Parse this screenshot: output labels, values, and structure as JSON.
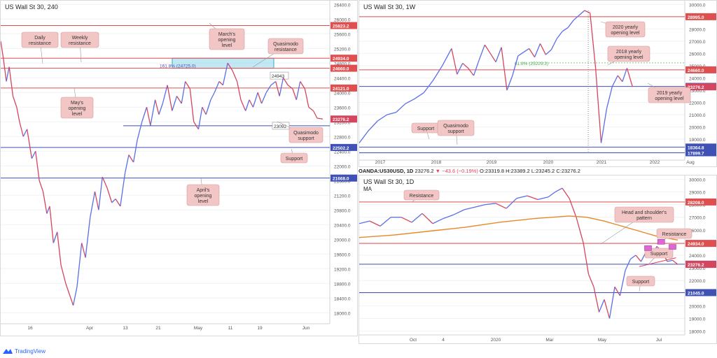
{
  "footer": {
    "brand": "TradingView"
  },
  "info_bar": {
    "symbol": "OANDA:US30USD, 1D",
    "last": "23276.2",
    "change": "−43.6 (−0.19%)",
    "open": "O:23319.8",
    "high": "H:23389.2",
    "low": "L:23245.2",
    "close": "C:23276.2"
  },
  "colors": {
    "up": "#5b6de8",
    "down": "#d6455e",
    "red_level": "#e04f4f",
    "blue_level": "#3f51b5",
    "callout_bg": "#f3c6c6",
    "ma": "#e6882a",
    "zone": "#8fd6ea",
    "pattern": "#e066d6"
  },
  "chart_data": [
    {
      "id": "h4",
      "type": "line",
      "title": "US Wall St 30, 240",
      "x_ticks": [
        "16",
        "Apr",
        "13",
        "21",
        "May",
        "11",
        "19",
        "Jun"
      ],
      "y_ticks": [
        "26400.0",
        "26000.0",
        "25600.0",
        "25200.0",
        "24800.0",
        "24400.0",
        "24000.0",
        "23600.0",
        "23200.0",
        "22800.0",
        "22400.0",
        "22000.0",
        "21600.0",
        "21200.0",
        "20800.0",
        "20400.0",
        "20000.0",
        "19600.0",
        "19200.0",
        "18800.0",
        "18400.0",
        "18000.0"
      ],
      "ylim": [
        17700,
        26500
      ],
      "series": [
        {
          "x": [
            0,
            3,
            6,
            9,
            13,
            17,
            20,
            24,
            28,
            33,
            37,
            41,
            45,
            49,
            52,
            56,
            60,
            64,
            69,
            73,
            77,
            81,
            86,
            90,
            95,
            100,
            104,
            108,
            113,
            118,
            122,
            127,
            132,
            136,
            141,
            145,
            150,
            155,
            159,
            164,
            168,
            172,
            177,
            182,
            187,
            192,
            196,
            201,
            205,
            210,
            214,
            218,
            223,
            227,
            232,
            236,
            241,
            246,
            251,
            255,
            260,
            264,
            268,
            273,
            277,
            282,
            287,
            292,
            296,
            300,
            305,
            310,
            314,
            318,
            323,
            327,
            332,
            336,
            342
          ],
          "values": [
            25400,
            24900,
            24300,
            24700,
            23900,
            23600,
            23200,
            22800,
            23000,
            22200,
            22400,
            21600,
            21300,
            20700,
            20900,
            19900,
            20200,
            19300,
            18800,
            18500,
            18200,
            18700,
            19900,
            19500,
            20600,
            21300,
            20800,
            21700,
            21400,
            21000,
            21100,
            20900,
            21800,
            22300,
            22100,
            22700,
            23200,
            23600,
            23100,
            23800,
            23400,
            23700,
            24200,
            23500,
            23900,
            23700,
            24300,
            24100,
            23200,
            23000,
            23600,
            23400,
            23800,
            24000,
            24300,
            24200,
            24800,
            24600,
            24300,
            23800,
            23500,
            23800,
            23600,
            24000,
            23700,
            24000,
            24200,
            24300,
            23900,
            24400,
            24200,
            24100,
            23800,
            24300,
            24100,
            23600,
            23500,
            23300,
            23276
          ]
        }
      ],
      "levels": [
        {
          "value": 25823.2,
          "label": "25823.2",
          "kind": "red"
        },
        {
          "value": 24934.0,
          "label": "24934.0",
          "kind": "red"
        },
        {
          "value": 24660.0,
          "label": "24660.0",
          "kind": "red"
        },
        {
          "value": 24121.0,
          "label": "24121.0",
          "kind": "red"
        },
        {
          "value": 23092,
          "label": "23092",
          "kind": "blue",
          "boxed": true
        },
        {
          "value": 22502.2,
          "label": "22502.2",
          "kind": "blue"
        },
        {
          "value": 21668.0,
          "label": "21668.0",
          "kind": "blue"
        }
      ],
      "price_tag": {
        "value": 23276.2,
        "label": "23276.2"
      },
      "zone": {
        "from": 24660,
        "to": 24934,
        "text": "161.8% (24725.0)"
      },
      "zone_tag": "24943",
      "annotations": [
        {
          "text": [
            "Daily",
            "resistance"
          ]
        },
        {
          "text": [
            "Weekly",
            "resistance"
          ]
        },
        {
          "text": [
            "March's",
            "opening",
            "level"
          ]
        },
        {
          "text": [
            "Quasimodo",
            "resistance"
          ]
        },
        {
          "text": [
            "May's",
            "opening",
            "level"
          ]
        },
        {
          "text": [
            "Quasimodo",
            "support"
          ]
        },
        {
          "text": [
            "Support"
          ]
        },
        {
          "text": [
            "April's",
            "opening",
            "level"
          ]
        }
      ]
    },
    {
      "id": "weekly",
      "type": "line",
      "title": "US Wall St 30, 1W",
      "x_ticks": [
        "2017",
        "2018",
        "2019",
        "2020",
        "2021",
        "2022",
        "Aug"
      ],
      "y_ticks": [
        "30000.0",
        "29000.0",
        "28000.0",
        "27000.0",
        "26000.0",
        "25000.0",
        "24000.0",
        "23000.0",
        "22000.0",
        "21000.0",
        "20000.0",
        "19000.0",
        "18000.0"
      ],
      "ylim": [
        17300,
        30300
      ],
      "series": [
        {
          "x": [
            0,
            10,
            20,
            30,
            40,
            50,
            60,
            70,
            80,
            90,
            100,
            106,
            112,
            118,
            124,
            130,
            136,
            142,
            148,
            154,
            160,
            166,
            172,
            178,
            184,
            190,
            196,
            202,
            208,
            214,
            220,
            226,
            232,
            238,
            244,
            250,
            256,
            262,
            268,
            274,
            280,
            285,
            290,
            296
          ],
          "values": [
            18700,
            19700,
            20500,
            21000,
            21200,
            21900,
            22300,
            22800,
            23800,
            25000,
            26400,
            24300,
            25200,
            24800,
            24200,
            25500,
            26700,
            26000,
            25300,
            26500,
            23000,
            24200,
            25800,
            26100,
            26400,
            25700,
            26800,
            25900,
            26300,
            27200,
            27800,
            28100,
            28700,
            29100,
            29500,
            29300,
            24800,
            18700,
            21500,
            23300,
            24200,
            23700,
            24800,
            23276
          ]
        }
      ],
      "levels": [
        {
          "value": 28995.0,
          "label": "28995.0",
          "kind": "red"
        },
        {
          "value": 25229.3,
          "label": "25229.3",
          "kind": "green"
        },
        {
          "value": 24660.0,
          "label": "24660.0",
          "kind": "red"
        },
        {
          "value": 23311.0,
          "label": "23311.0",
          "kind": "blue"
        },
        {
          "value": 18364.8,
          "label": "18364.8",
          "kind": "blue"
        },
        {
          "value": 17899.7,
          "label": "17899.7",
          "kind": "blue"
        }
      ],
      "price_tag": {
        "value": 23276.2,
        "label": "23276.2"
      },
      "fib_text": "61.8% (25229.3)",
      "annotations": [
        {
          "text": [
            "2020 yearly",
            "opening level"
          ]
        },
        {
          "text": [
            "2018 yearly",
            "opening level"
          ]
        },
        {
          "text": [
            "2019 yearly",
            "opening level"
          ]
        },
        {
          "text": [
            "Support"
          ]
        },
        {
          "text": [
            "Quasimodo",
            "support"
          ]
        }
      ]
    },
    {
      "id": "daily",
      "type": "line",
      "title": "US Wall St 30, 1D",
      "subtitle": "MA",
      "x_ticks": [
        "Oct",
        "4",
        "2020",
        "Mar",
        "May",
        "Jul"
      ],
      "y_ticks": [
        "30000.0",
        "29000.0",
        "28000.0",
        "27000.0",
        "26000.0",
        "25000.0",
        "24000.0",
        "23000.0",
        "22000.0",
        "21000.0",
        "20000.0",
        "19000.0",
        "18000.0"
      ],
      "ylim": [
        17700,
        30300
      ],
      "series": [
        {
          "name": "price",
          "x": [
            0,
            12,
            24,
            36,
            48,
            60,
            72,
            84,
            96,
            108,
            120,
            132,
            144,
            156,
            168,
            180,
            192,
            204,
            216,
            224,
            232,
            240,
            248,
            256,
            262,
            268,
            274,
            280,
            286,
            292,
            298,
            304,
            310,
            316,
            322,
            328,
            334,
            340,
            346,
            352,
            358,
            364
          ],
          "values": [
            26500,
            26700,
            26300,
            27000,
            27000,
            26600,
            27300,
            26500,
            26900,
            27200,
            27600,
            27800,
            28000,
            28100,
            27700,
            28500,
            28700,
            28400,
            28600,
            29000,
            29300,
            28500,
            27000,
            25000,
            22500,
            21500,
            19500,
            20500,
            19000,
            21500,
            20800,
            22800,
            23700,
            24000,
            23500,
            24300,
            23800,
            24700,
            24300,
            23500,
            23600,
            23276
          ]
        },
        {
          "name": "MA",
          "x": [
            0,
            40,
            80,
            120,
            160,
            200,
            240,
            260,
            280,
            300,
            320,
            340,
            364
          ],
          "values": [
            25400,
            25600,
            25900,
            26200,
            26600,
            26900,
            27100,
            27000,
            26700,
            26300,
            25900,
            25500,
            25200
          ]
        }
      ],
      "levels": [
        {
          "value": 28208.0,
          "label": "28208.0",
          "kind": "red"
        },
        {
          "value": 24934.0,
          "label": "24934.0",
          "kind": "red"
        },
        {
          "value": 23291.0,
          "label": "23291.0",
          "kind": "blue"
        },
        {
          "value": 21045.0,
          "label": "21045.0",
          "kind": "blue"
        }
      ],
      "price_tag": {
        "value": 23276.2,
        "label": "23276.2"
      },
      "annotations": [
        {
          "text": [
            "Resistance"
          ]
        },
        {
          "text": [
            "Head and shoulder's",
            "pattern"
          ]
        },
        {
          "text": [
            "Resistance"
          ]
        },
        {
          "text": [
            "Support"
          ]
        },
        {
          "text": [
            "Support"
          ]
        }
      ]
    }
  ]
}
